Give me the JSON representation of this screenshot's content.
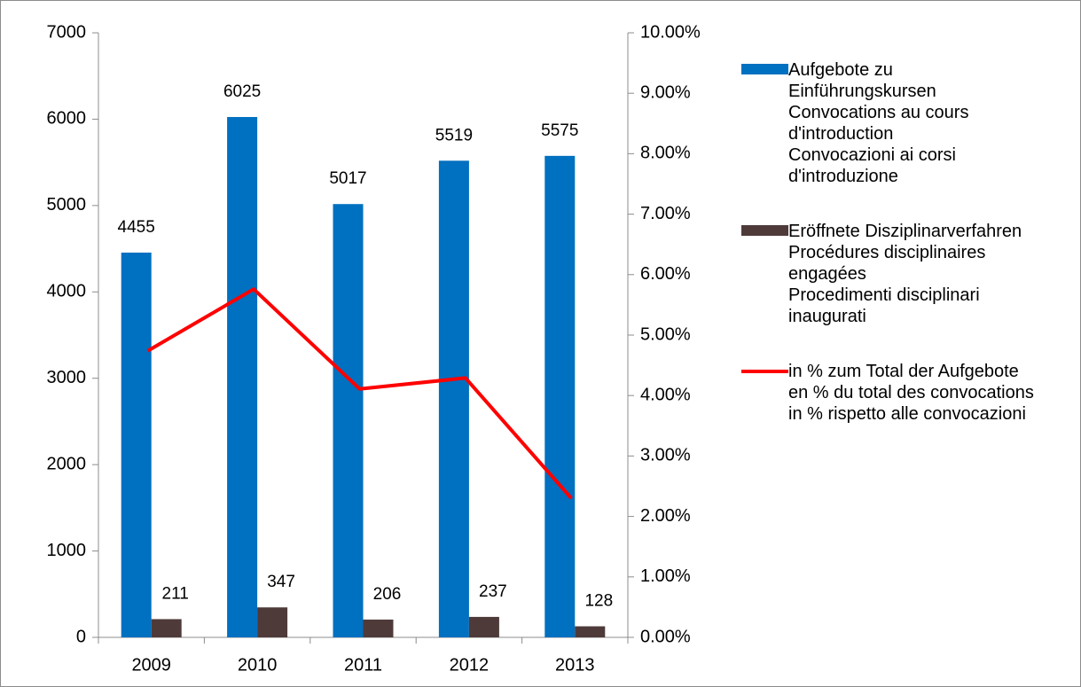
{
  "chart_data": {
    "type": "bar",
    "categories": [
      "2009",
      "2010",
      "2011",
      "2012",
      "2013"
    ],
    "series": [
      {
        "name": "Aufgebote zu Einführungskursen\nConvocations au cours d'introduction\nConvocazioni ai corsi d'introduzione",
        "color": "#0070c0",
        "values": [
          4455,
          6025,
          5017,
          5519,
          5575
        ]
      },
      {
        "name": "Eröffnete Disziplinarverfahren\nProcédures disciplinaires engagées\nProcedimenti disciplinari inaugurati",
        "color": "#4f3a3a",
        "values": [
          211,
          347,
          206,
          237,
          128
        ]
      },
      {
        "name": "in % zum Total der Aufgebote\nen % du total des convocations\nin % rispetto alle convocazioni",
        "color": "#ff0000",
        "type": "line",
        "axis": "y2",
        "values": [
          4.74,
          5.76,
          4.11,
          4.29,
          2.3
        ]
      }
    ],
    "ylim": [
      0,
      7000
    ],
    "yticks": [
      0,
      1000,
      2000,
      3000,
      4000,
      5000,
      6000,
      7000
    ],
    "y2lim": [
      0,
      10
    ],
    "y2ticks": [
      {
        "value": 0,
        "label": "0.00%"
      },
      {
        "value": 1,
        "label": "1.00%"
      },
      {
        "value": 2,
        "label": "2.00%"
      },
      {
        "value": 3,
        "label": "3.00%"
      },
      {
        "value": 4,
        "label": "4.00%"
      },
      {
        "value": 5,
        "label": "5.00%"
      },
      {
        "value": 6,
        "label": "6.00%"
      },
      {
        "value": 7,
        "label": "7.00%"
      },
      {
        "value": 8,
        "label": "8.00%"
      },
      {
        "value": 9,
        "label": "9.00%"
      },
      {
        "value": 10,
        "label": "10.00%"
      }
    ],
    "grid": false,
    "legend": "right"
  }
}
